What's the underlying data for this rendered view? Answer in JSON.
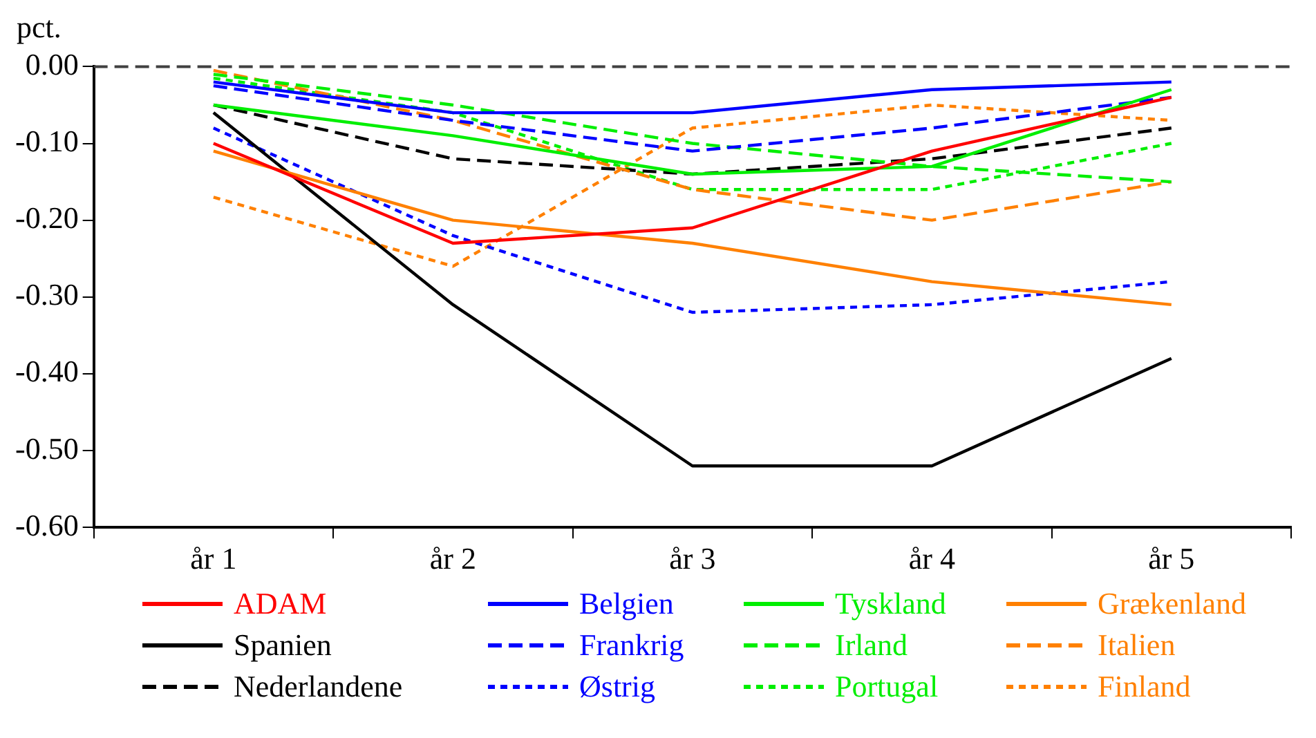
{
  "chart_data": {
    "type": "line",
    "ylabel": "pct.",
    "categories": [
      "år 1",
      "år 2",
      "år 3",
      "år 4",
      "år 5"
    ],
    "ylim": [
      -0.6,
      0.0
    ],
    "yticks": [
      {
        "value": 0,
        "label": "0.00"
      },
      {
        "value": -0.1,
        "label": "-0.10"
      },
      {
        "value": -0.2,
        "label": "-0.20"
      },
      {
        "value": -0.3,
        "label": "-0.30"
      },
      {
        "value": -0.4,
        "label": "-0.40"
      },
      {
        "value": -0.5,
        "label": "-0.50"
      },
      {
        "value": -0.6,
        "label": "-0.60"
      }
    ],
    "grid": false,
    "legend": "bottom",
    "marker": "none",
    "ref_lines": [
      {
        "axis": "y",
        "value": 0,
        "color": "#404040",
        "line_style": "dashed"
      }
    ],
    "series": [
      {
        "name": "ADAM",
        "color": "#ff0000",
        "line_style": "solid",
        "values": [
          -0.1,
          -0.23,
          -0.21,
          -0.11,
          -0.04
        ]
      },
      {
        "name": "Belgien",
        "color": "#0000ff",
        "line_style": "solid",
        "values": [
          -0.02,
          -0.06,
          -0.06,
          -0.03,
          -0.02
        ]
      },
      {
        "name": "Tyskland",
        "color": "#00ee00",
        "line_style": "solid",
        "values": [
          -0.05,
          -0.09,
          -0.14,
          -0.13,
          -0.03
        ]
      },
      {
        "name": "Grækenland",
        "color": "#ff8000",
        "line_style": "solid",
        "values": [
          -0.11,
          -0.2,
          -0.23,
          -0.28,
          -0.31
        ]
      },
      {
        "name": "Spanien",
        "color": "#000000",
        "line_style": "solid",
        "values": [
          -0.06,
          -0.31,
          -0.52,
          -0.52,
          -0.38
        ]
      },
      {
        "name": "Frankrig",
        "color": "#0000ff",
        "line_style": "dashed",
        "values": [
          -0.025,
          -0.07,
          -0.11,
          -0.08,
          -0.04
        ]
      },
      {
        "name": "Irland",
        "color": "#00ee00",
        "line_style": "dashed",
        "values": [
          -0.01,
          -0.05,
          -0.1,
          -0.13,
          -0.15
        ]
      },
      {
        "name": "Italien",
        "color": "#ff8000",
        "line_style": "dashed",
        "values": [
          -0.005,
          -0.07,
          -0.16,
          -0.2,
          -0.15
        ]
      },
      {
        "name": "Nederlandene",
        "color": "#000000",
        "line_style": "dashed",
        "values": [
          -0.05,
          -0.12,
          -0.14,
          -0.12,
          -0.08
        ]
      },
      {
        "name": "Østrig",
        "color": "#0000ff",
        "line_style": "dotted",
        "values": [
          -0.08,
          -0.22,
          -0.32,
          -0.31,
          -0.28
        ]
      },
      {
        "name": "Portugal",
        "color": "#00ee00",
        "line_style": "dotted",
        "values": [
          -0.015,
          -0.06,
          -0.16,
          -0.16,
          -0.1
        ]
      },
      {
        "name": "Finland",
        "color": "#ff8000",
        "line_style": "dotted",
        "values": [
          -0.17,
          -0.26,
          -0.08,
          -0.05,
          -0.07
        ]
      }
    ]
  }
}
